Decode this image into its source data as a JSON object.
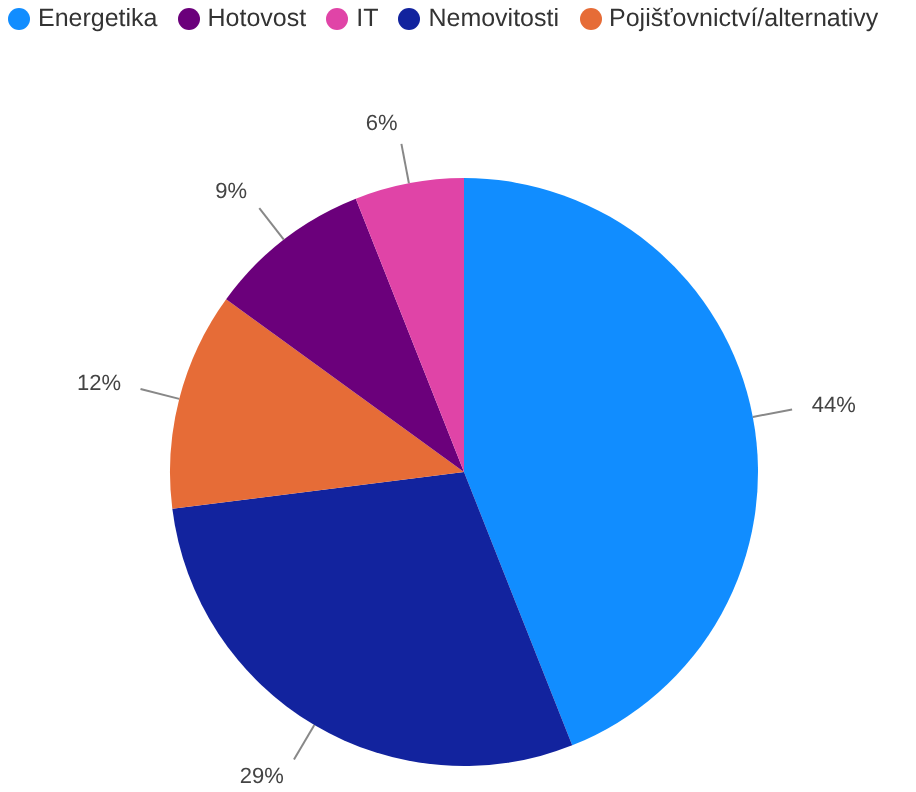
{
  "chart_data": {
    "type": "pie",
    "categories": [
      "Energetika",
      "Nemovitosti",
      "Pojišťovnictví/alternativy",
      "Hotovost",
      "IT"
    ],
    "values": [
      44,
      29,
      12,
      9,
      6
    ],
    "colors": [
      "#118dff",
      "#12239e",
      "#e66c37",
      "#6b007b",
      "#e044a7"
    ],
    "value_labels": [
      "44%",
      "29%",
      "12%",
      "9%",
      "6%"
    ],
    "legend": "top left"
  }
}
